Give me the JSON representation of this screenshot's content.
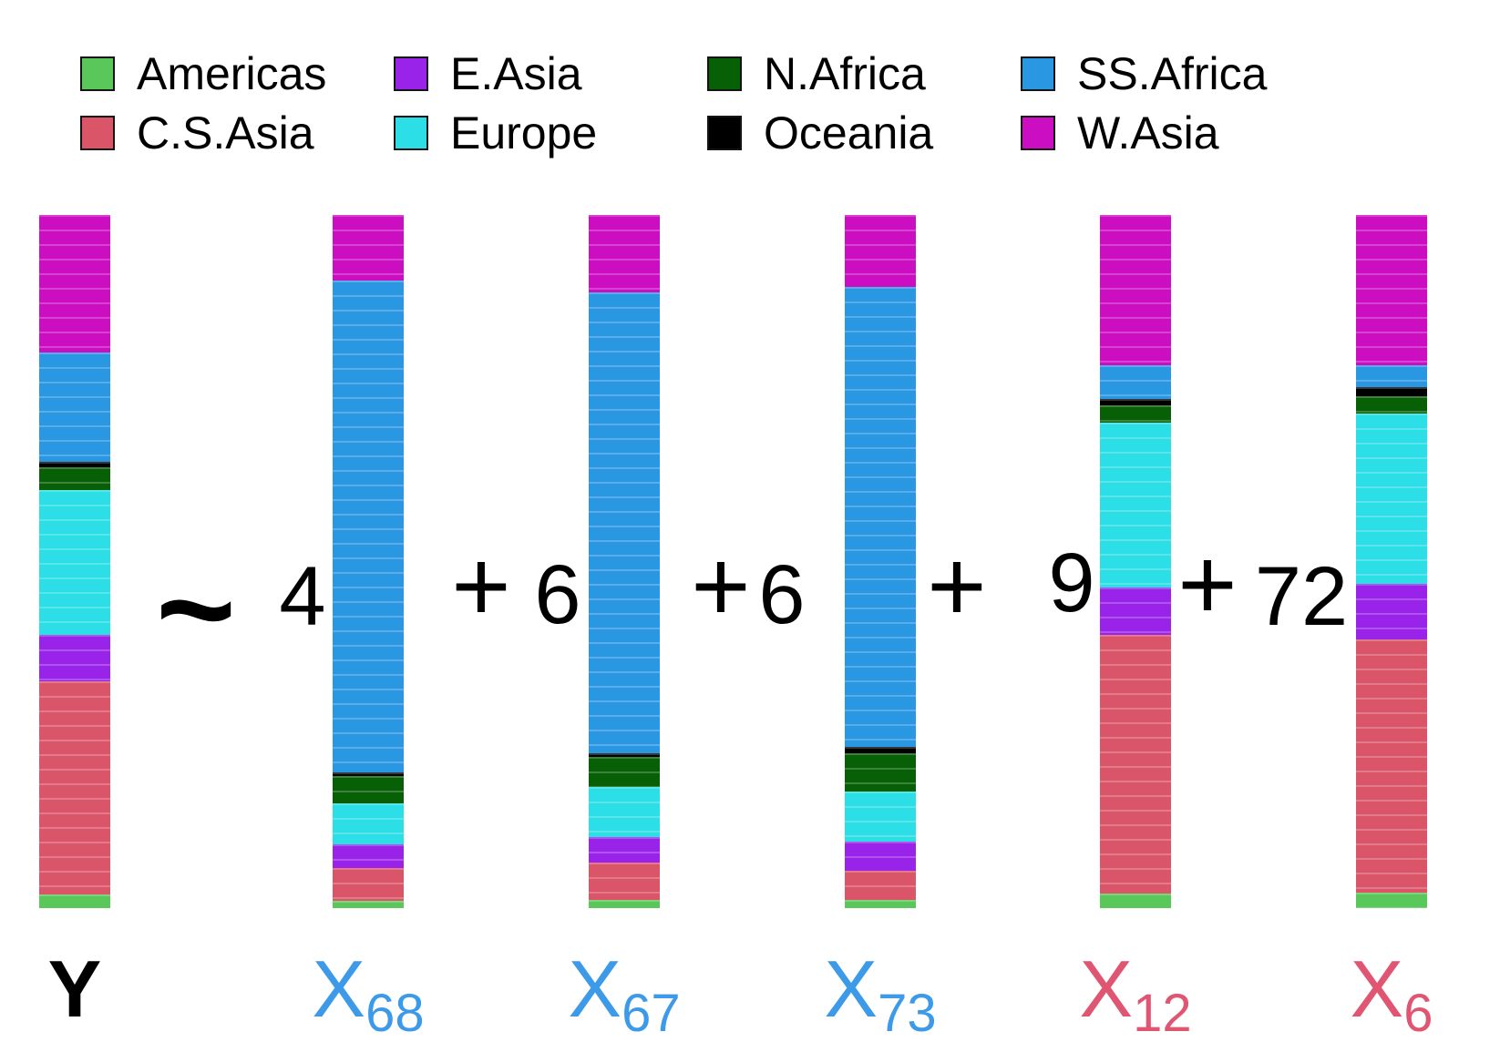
{
  "colors": {
    "Americas": "#5AC75A",
    "C.S.Asia": "#DB5569",
    "E.Asia": "#9A23E9",
    "Europe": "#2CDEE5",
    "N.Africa": "#075F06",
    "Oceania": "#000000",
    "SS.Africa": "#2A97E3",
    "W.Asia": "#CB0EC2"
  },
  "legend": {
    "rows": [
      [
        "Americas",
        "E.Asia",
        "N.Africa",
        "SS.Africa"
      ],
      [
        "C.S.Asia",
        "Europe",
        "Oceania",
        "W.Asia"
      ]
    ]
  },
  "chart_data": {
    "type": "bar",
    "stacked": true,
    "orientation": "vertical",
    "unit": "percent_of_bar_height",
    "grid": false,
    "legend_position": "top",
    "stack_order_top_to_bottom": [
      "W.Asia",
      "SS.Africa",
      "Oceania",
      "N.Africa",
      "Europe",
      "E.Asia",
      "C.S.Asia",
      "Americas"
    ],
    "bars": [
      {
        "label_base": "Y",
        "label_sub": "",
        "label_color": "#000000",
        "values_percent": {
          "W.Asia": 19.9,
          "SS.Africa": 15.7,
          "Oceania": 0.8,
          "N.Africa": 3.3,
          "Europe": 20.9,
          "E.Asia": 6.7,
          "C.S.Asia": 30.7,
          "Americas": 2.0
        }
      },
      {
        "label_base": "X",
        "label_sub": "68",
        "label_color": "#3D9AE8",
        "values_percent": {
          "W.Asia": 9.5,
          "SS.Africa": 70.9,
          "Oceania": 0.6,
          "N.Africa": 3.9,
          "Europe": 5.9,
          "E.Asia": 3.4,
          "C.S.Asia": 4.7,
          "Americas": 1.1
        }
      },
      {
        "label_base": "X",
        "label_sub": "67",
        "label_color": "#3D9AE8",
        "values_percent": {
          "W.Asia": 11.2,
          "SS.Africa": 66.4,
          "Oceania": 0.6,
          "N.Africa": 4.3,
          "Europe": 7.2,
          "E.Asia": 3.8,
          "C.S.Asia": 5.3,
          "Americas": 1.2
        }
      },
      {
        "label_base": "X",
        "label_sub": "73",
        "label_color": "#3D9AE8",
        "values_percent": {
          "W.Asia": 10.4,
          "SS.Africa": 66.4,
          "Oceania": 0.8,
          "N.Africa": 5.6,
          "Europe": 7.2,
          "E.Asia": 4.2,
          "C.S.Asia": 4.2,
          "Americas": 1.2
        }
      },
      {
        "label_base": "X",
        "label_sub": "12",
        "label_color": "#E05672",
        "values_percent": {
          "W.Asia": 21.7,
          "SS.Africa": 4.9,
          "Oceania": 0.9,
          "N.Africa": 2.5,
          "Europe": 23.7,
          "E.Asia": 6.9,
          "C.S.Asia": 37.3,
          "Americas": 2.1
        }
      },
      {
        "label_base": "X",
        "label_sub": "6",
        "label_color": "#E05672",
        "values_percent": {
          "W.Asia": 21.7,
          "SS.Africa": 3.1,
          "Oceania": 1.3,
          "N.Africa": 2.5,
          "Europe": 24.6,
          "E.Asia": 8.0,
          "C.S.Asia": 36.6,
          "Americas": 2.2
        }
      }
    ],
    "operators": [
      {
        "symbol": "~",
        "coefficient": "4"
      },
      {
        "symbol": "+",
        "coefficient": "6"
      },
      {
        "symbol": "+",
        "coefficient": "6"
      },
      {
        "symbol": "+",
        "coefficient": "9"
      },
      {
        "symbol": "+",
        "coefficient": "72"
      }
    ]
  }
}
